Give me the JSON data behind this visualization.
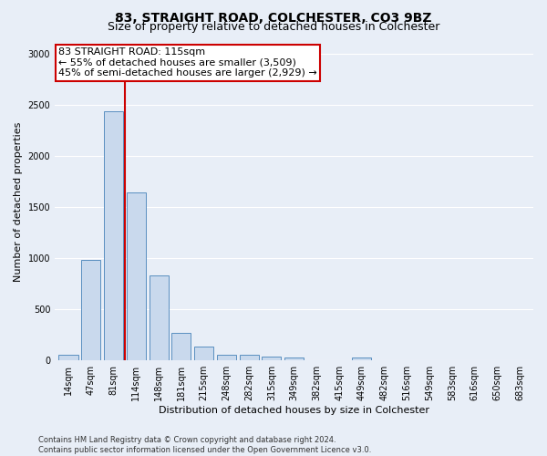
{
  "title": "83, STRAIGHT ROAD, COLCHESTER, CO3 9BZ",
  "subtitle": "Size of property relative to detached houses in Colchester",
  "xlabel": "Distribution of detached houses by size in Colchester",
  "ylabel": "Number of detached properties",
  "categories": [
    "14sqm",
    "47sqm",
    "81sqm",
    "114sqm",
    "148sqm",
    "181sqm",
    "215sqm",
    "248sqm",
    "282sqm",
    "315sqm",
    "349sqm",
    "382sqm",
    "415sqm",
    "449sqm",
    "482sqm",
    "516sqm",
    "549sqm",
    "583sqm",
    "616sqm",
    "650sqm",
    "683sqm"
  ],
  "values": [
    55,
    985,
    2440,
    1640,
    830,
    270,
    140,
    55,
    55,
    40,
    25,
    0,
    0,
    30,
    0,
    0,
    0,
    0,
    0,
    0,
    0
  ],
  "bar_color": "#c9d9ed",
  "bar_edge_color": "#5a8fc0",
  "vline_color": "#cc0000",
  "annotation_text": "83 STRAIGHT ROAD: 115sqm\n← 55% of detached houses are smaller (3,509)\n45% of semi-detached houses are larger (2,929) →",
  "annotation_box_color": "#cc0000",
  "ylim": [
    0,
    3100
  ],
  "yticks": [
    0,
    500,
    1000,
    1500,
    2000,
    2500,
    3000
  ],
  "footer": "Contains HM Land Registry data © Crown copyright and database right 2024.\nContains public sector information licensed under the Open Government Licence v3.0.",
  "bg_color": "#e8eef7",
  "plot_bg_color": "#e8eef7",
  "grid_color": "#ffffff",
  "title_fontsize": 10,
  "subtitle_fontsize": 9,
  "label_fontsize": 8,
  "tick_fontsize": 7,
  "annotation_fontsize": 8,
  "footer_fontsize": 6
}
